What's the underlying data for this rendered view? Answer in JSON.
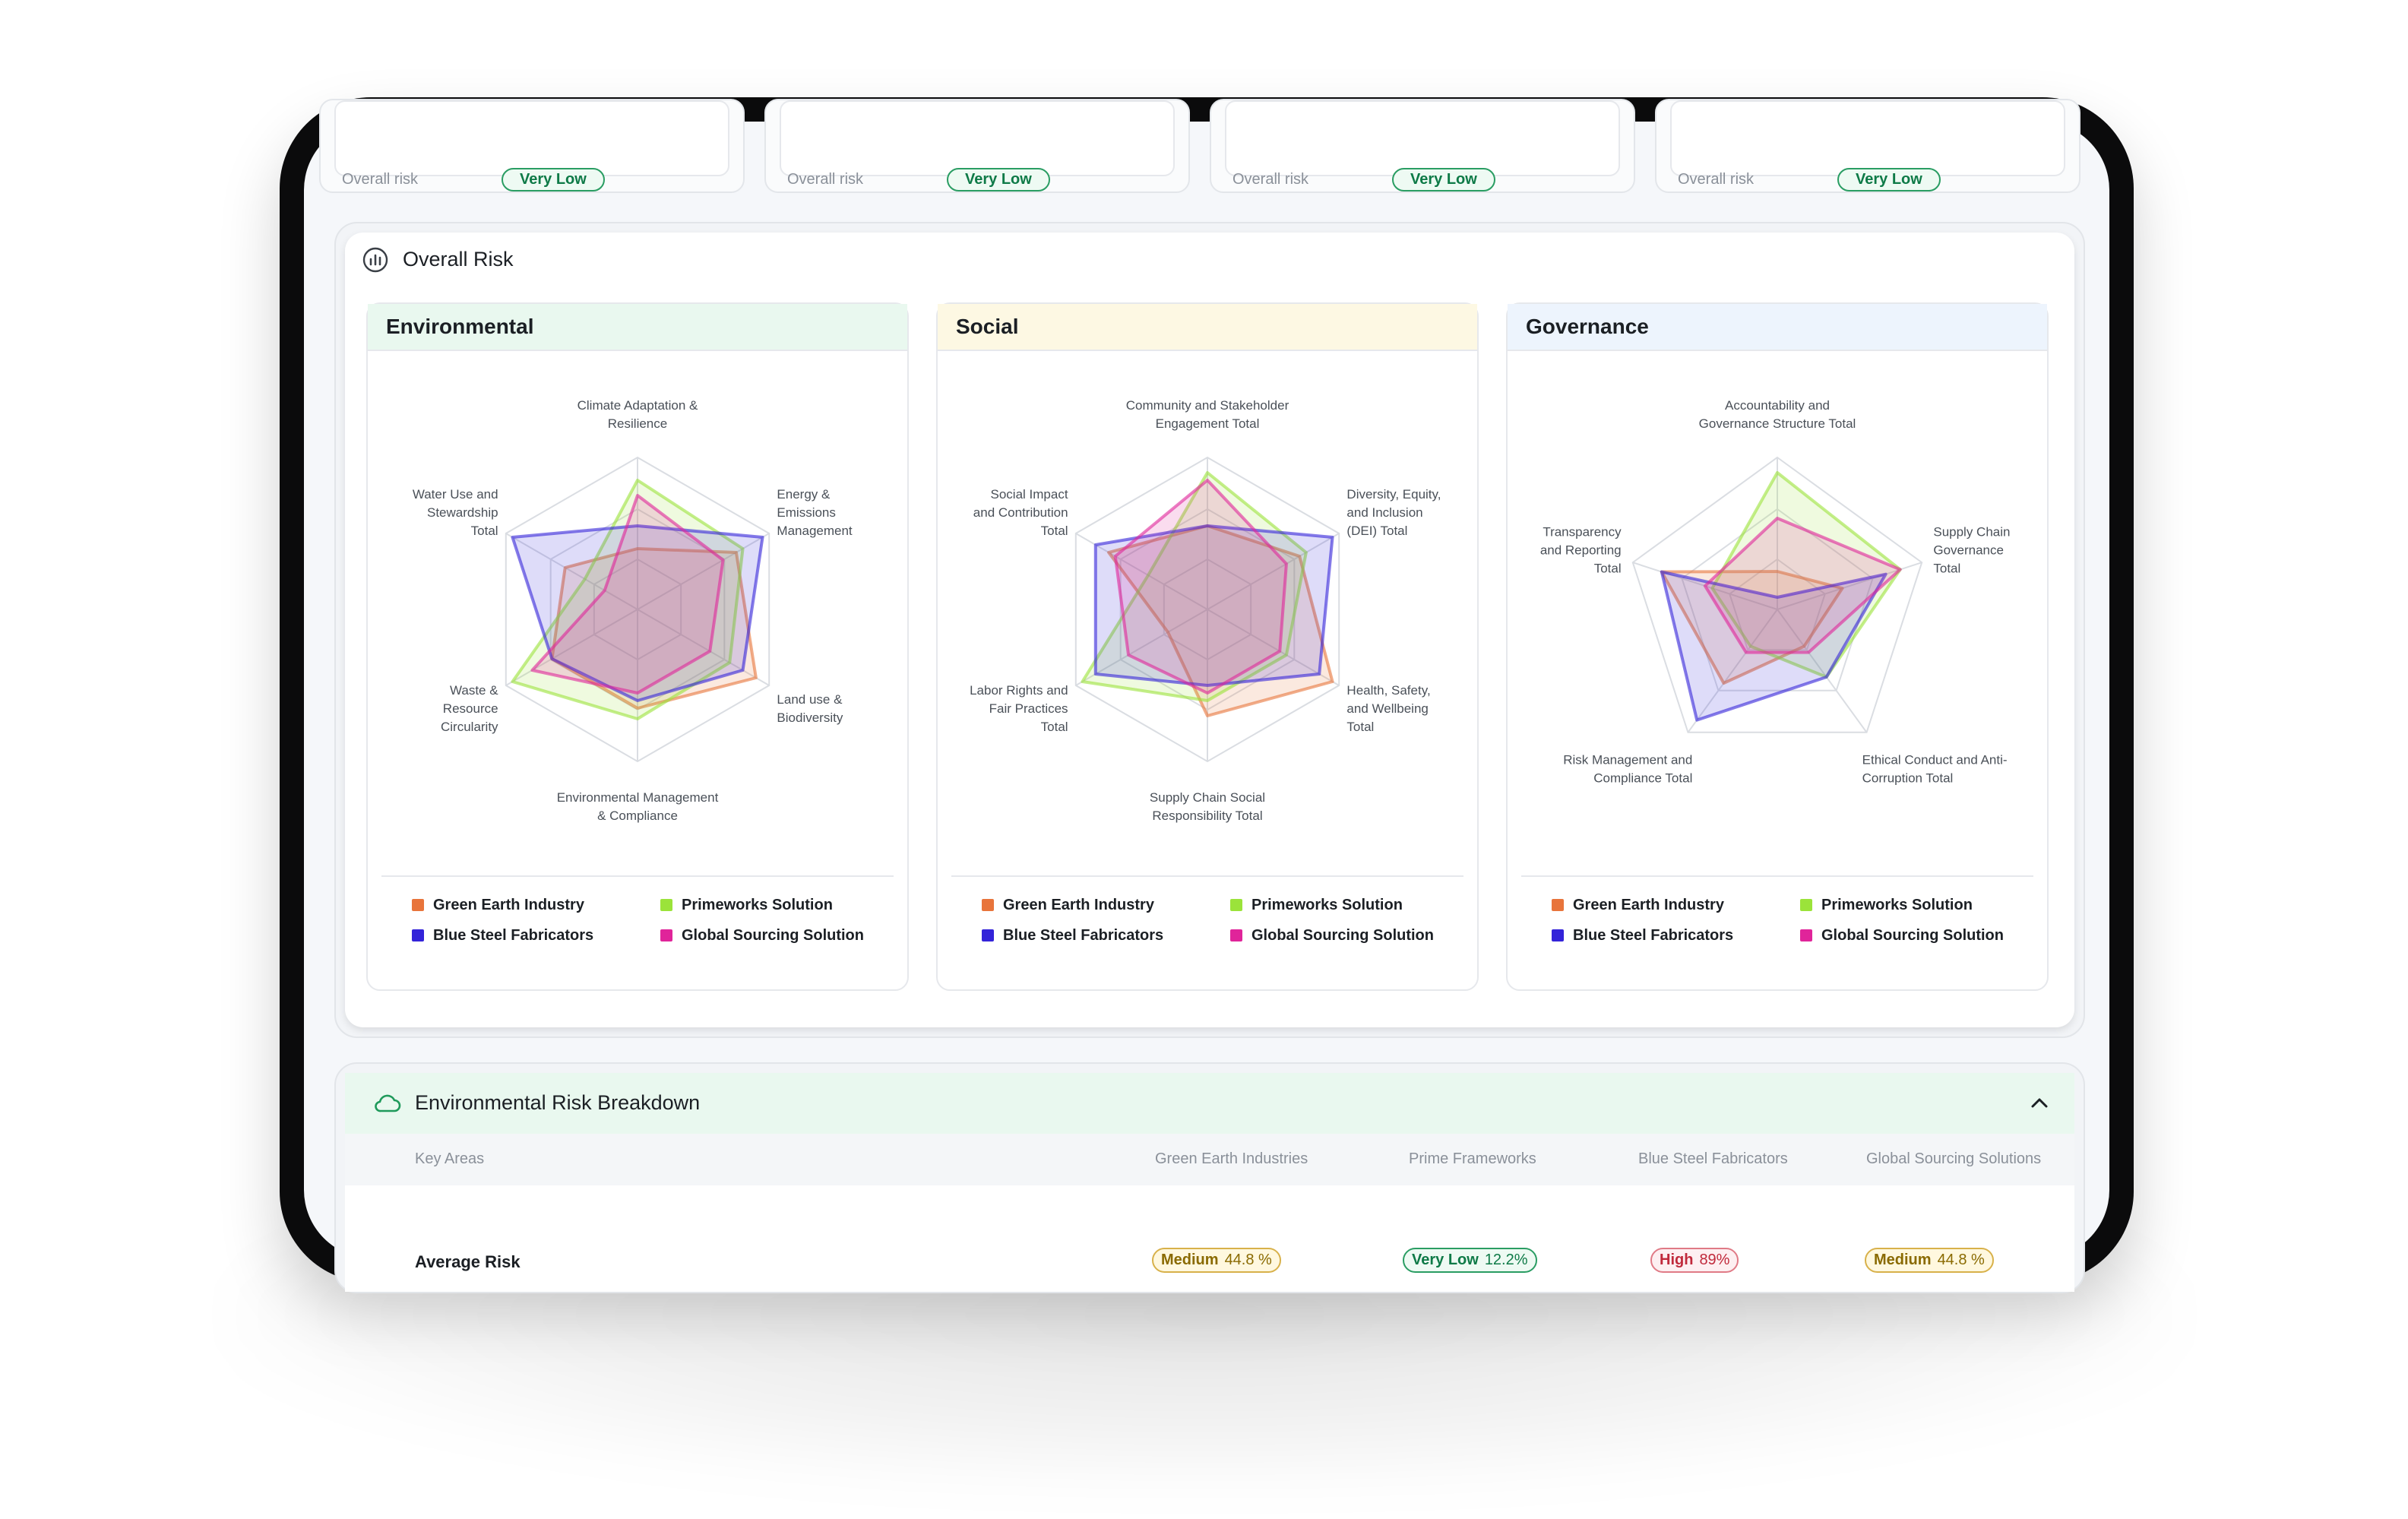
{
  "top_cards": [
    {
      "label": "Overall risk",
      "badge": "Very Low"
    },
    {
      "label": "Overall risk",
      "badge": "Very Low"
    },
    {
      "label": "Overall risk",
      "badge": "Very Low"
    },
    {
      "label": "Overall risk",
      "badge": "Very Low"
    }
  ],
  "overall_risk": {
    "title": "Overall Risk",
    "icon": "bar-chart-circle-icon"
  },
  "colors": {
    "green_earth": "#e8743b",
    "primeworks": "#9be33a",
    "blue_steel": "#3323d9",
    "global_sourcing": "#e0249a",
    "env_header": "#e9f8ef",
    "social_header": "#fdf8e3",
    "gov_header": "#edf4fd"
  },
  "legend": [
    {
      "name": "Green Earth Industry",
      "color": "#e8743b"
    },
    {
      "name": "Primeworks Solution",
      "color": "#9be33a"
    },
    {
      "name": "Blue Steel Fabricators",
      "color": "#3323d9"
    },
    {
      "name": "Global Sourcing Solution",
      "color": "#e0249a"
    }
  ],
  "chart_data": [
    {
      "type": "radar",
      "title": "Environmental",
      "axes": [
        [
          "Climate Adaptation &",
          "Resilience"
        ],
        [
          "Energy &",
          "Emissions",
          "Management"
        ],
        [
          "Land use &",
          "Biodiversity"
        ],
        [
          "Environmental Management",
          "& Compliance"
        ],
        [
          "Waste &",
          "Resource",
          "Circularity"
        ],
        [
          "Water Use and",
          "Stewardship",
          "Total"
        ]
      ],
      "series": [
        {
          "name": "Green Earth Industry",
          "values": [
            0.4,
            0.75,
            0.9,
            0.65,
            0.65,
            0.55
          ]
        },
        {
          "name": "Primeworks Solution",
          "values": [
            0.85,
            0.8,
            0.7,
            0.72,
            0.95,
            0.4
          ]
        },
        {
          "name": "Blue Steel Fabricators",
          "values": [
            0.55,
            0.95,
            0.8,
            0.6,
            0.65,
            0.95
          ]
        },
        {
          "name": "Global Sourcing Solution",
          "values": [
            0.75,
            0.65,
            0.55,
            0.55,
            0.8,
            0.25
          ]
        }
      ]
    },
    {
      "type": "radar",
      "title": "Social",
      "axes": [
        [
          "Community and Stakeholder",
          "Engagement Total"
        ],
        [
          "Diversity, Equity,",
          "and Inclusion",
          "(DEI) Total"
        ],
        [
          "Health, Safety,",
          "and Wellbeing",
          "Total"
        ],
        [
          "Supply Chain Social",
          "Responsibility Total"
        ],
        [
          "Labor Rights and",
          "Fair Practices",
          "Total"
        ],
        [
          "Social Impact",
          "and Contribution",
          "Total"
        ]
      ],
      "series": [
        {
          "name": "Green Earth Industry",
          "values": [
            0.55,
            0.7,
            0.95,
            0.7,
            0.3,
            0.75
          ]
        },
        {
          "name": "Primeworks Solution",
          "values": [
            0.9,
            0.75,
            0.6,
            0.6,
            0.95,
            0.45
          ]
        },
        {
          "name": "Blue Steel Fabricators",
          "values": [
            0.55,
            0.95,
            0.85,
            0.5,
            0.85,
            0.85
          ]
        },
        {
          "name": "Global Sourcing Solution",
          "values": [
            0.85,
            0.6,
            0.55,
            0.55,
            0.6,
            0.7
          ]
        }
      ]
    },
    {
      "type": "radar",
      "title": "Governance",
      "axes": [
        [
          "Accountability and",
          "Governance Structure Total"
        ],
        [
          "Supply Chain",
          "Governance",
          "Total"
        ],
        [
          "Ethical Conduct and Anti-",
          "Corruption Total"
        ],
        [
          "Risk Management and",
          "Compliance Total"
        ],
        [
          "Transparency",
          "and Reporting",
          "Total"
        ]
      ],
      "series": [
        {
          "name": "Green Earth Industry",
          "values": [
            0.25,
            0.45,
            0.3,
            0.6,
            0.8
          ]
        },
        {
          "name": "Primeworks Solution",
          "values": [
            0.9,
            0.85,
            0.55,
            0.3,
            0.45
          ]
        },
        {
          "name": "Blue Steel Fabricators",
          "values": [
            0.0,
            0.75,
            0.55,
            0.9,
            0.8
          ]
        },
        {
          "name": "Global Sourcing Solution",
          "values": [
            0.6,
            0.85,
            0.35,
            0.35,
            0.5
          ]
        }
      ]
    }
  ],
  "breakdown": {
    "title": "Environmental Risk Breakdown",
    "icon": "cloud-icon",
    "collapse_icon": "chevron-up-icon",
    "columns": [
      "Key Areas",
      "Green Earth Industries",
      "Prime Frameworks",
      "Blue Steel Fabricators",
      "Global Sourcing Solutions"
    ],
    "row": {
      "label": "Average Risk",
      "pills": [
        {
          "level": "Medium",
          "value": "44.8 %"
        },
        {
          "level": "Very Low",
          "value": "12.2%"
        },
        {
          "level": "High",
          "value": "89%"
        },
        {
          "level": "Medium",
          "value": "44.8 %"
        }
      ]
    }
  }
}
